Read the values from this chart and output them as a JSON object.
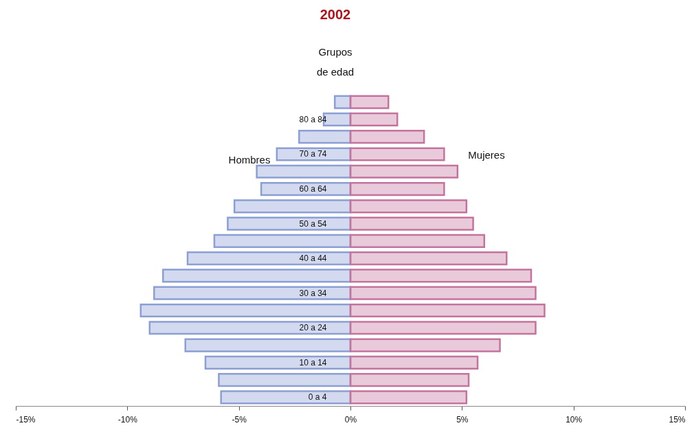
{
  "chart_data": {
    "type": "bar",
    "orientation": "horizontal",
    "title": "2002",
    "ylabel": "Grupos de edad",
    "categories": [
      null,
      "80 a 84",
      null,
      "70 a 74",
      null,
      "60 a 64",
      null,
      "50 a 54",
      null,
      "40 a 44",
      null,
      "30 a 34",
      null,
      "20 a 24",
      null,
      "10 a 14",
      null,
      "0 a 4"
    ],
    "series": [
      {
        "name": "Hombres",
        "color": "#8b9fd4",
        "values": [
          -0.7,
          -1.2,
          -2.3,
          -3.3,
          -4.2,
          -4.0,
          -5.2,
          -5.5,
          -6.1,
          -7.3,
          -8.4,
          -8.8,
          -9.4,
          -9.0,
          -7.4,
          -6.5,
          -5.9,
          -5.8
        ]
      },
      {
        "name": "Mujeres",
        "color": "#c4739d",
        "values": [
          1.7,
          2.1,
          3.3,
          4.2,
          4.8,
          4.2,
          5.2,
          5.5,
          6.0,
          7.0,
          8.1,
          8.3,
          8.7,
          8.3,
          6.7,
          5.7,
          5.3,
          5.2
        ]
      }
    ],
    "xlim": [
      -15,
      15
    ],
    "xticks": [
      {
        "value": -15,
        "label": "-15%"
      },
      {
        "value": -10,
        "label": "-10%"
      },
      {
        "value": -5,
        "label": "-5%"
      },
      {
        "value": 0,
        "label": "0%"
      },
      {
        "value": 5,
        "label": "5%"
      },
      {
        "value": 10,
        "label": "10%"
      },
      {
        "value": 15,
        "label": "15%"
      }
    ],
    "grid": false
  }
}
